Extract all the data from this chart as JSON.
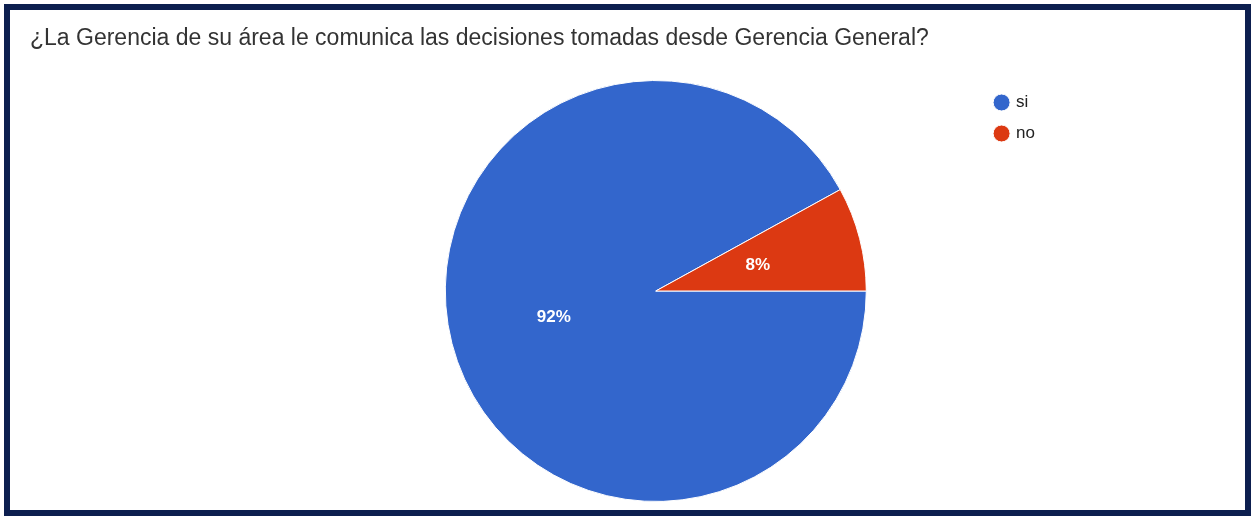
{
  "chart_data": {
    "type": "pie",
    "title": "¿La Gerencia de su área le comunica las decisiones tomadas desde Gerencia General?",
    "categories": [
      "si",
      "no"
    ],
    "values": [
      92,
      8
    ],
    "value_labels": [
      "92%",
      "8%"
    ],
    "colors": [
      "#3366cc",
      "#dc3912"
    ],
    "legend": "right"
  }
}
